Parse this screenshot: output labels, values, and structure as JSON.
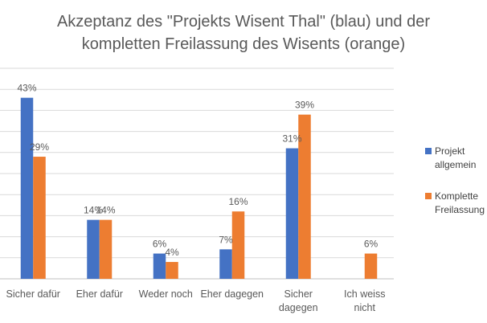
{
  "chart_data": {
    "type": "bar",
    "title": "Akzeptanz des \"Projekts Wisent Thal\" (blau) und der kompletten Freilassung des Wisents (orange)",
    "title_lines": [
      "Akzeptanz des \"Projekts Wisent Thal\" (blau) und der",
      "kompletten Freilassung des Wisents (orange)"
    ],
    "categories": [
      [
        "Sicher dafür"
      ],
      [
        "Eher dafür"
      ],
      [
        "Weder noch"
      ],
      [
        "Eher dagegen"
      ],
      [
        "Sicher",
        "dagegen"
      ],
      [
        "Ich weiss",
        "nicht"
      ]
    ],
    "series": [
      {
        "name": "Projekt allgemein",
        "legend_lines": [
          "Projekt",
          "allgemein"
        ],
        "color": "#4472C4",
        "values": [
          43,
          14,
          6,
          7,
          31,
          null
        ],
        "labels": [
          "43%",
          "14%",
          "6%",
          "7%",
          "31%",
          ""
        ]
      },
      {
        "name": "Komplette Freilassung",
        "legend_lines": [
          "Komplette",
          "Freilassung"
        ],
        "color": "#ED7D31",
        "values": [
          29,
          14,
          4,
          16,
          39,
          6
        ],
        "labels": [
          "29%",
          "14%",
          "4%",
          "16%",
          "39%",
          "6%"
        ]
      }
    ],
    "ylim": [
      0,
      50
    ],
    "gridlines": true,
    "legend_position": "right",
    "xlabel": "",
    "ylabel": ""
  }
}
